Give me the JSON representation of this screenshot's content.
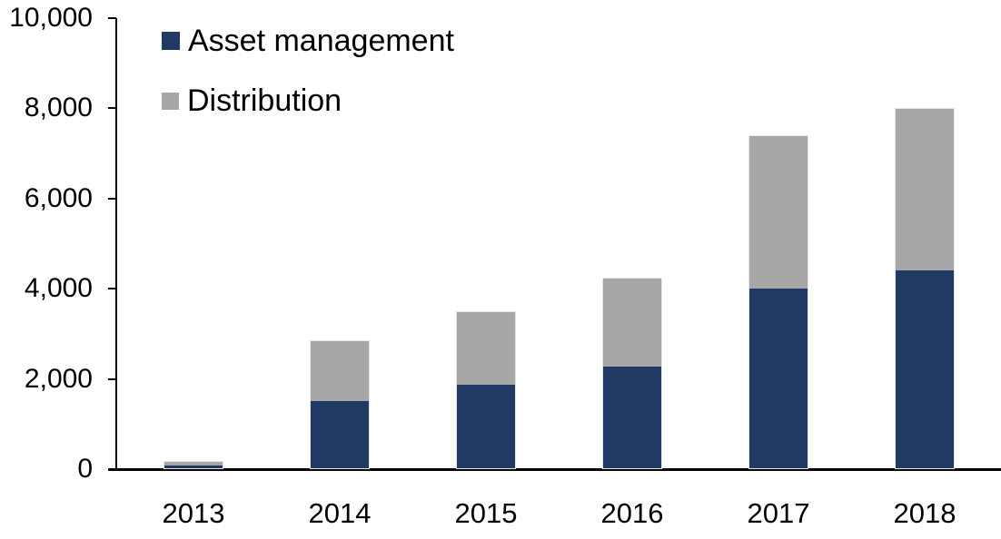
{
  "chart_data": {
    "type": "bar",
    "stacked": true,
    "title": "",
    "xlabel": "",
    "ylabel": "",
    "categories": [
      "2013",
      "2014",
      "2015",
      "2016",
      "2017",
      "2018"
    ],
    "series": [
      {
        "name": "Asset management",
        "color": "#213a63",
        "values": [
          90,
          1500,
          1870,
          2280,
          4000,
          4400
        ]
      },
      {
        "name": "Distribution",
        "color": "#a7a7a7",
        "values": [
          90,
          1350,
          1630,
          1970,
          3400,
          3600
        ]
      }
    ],
    "totals": [
      180,
      2850,
      3500,
      4250,
      7400,
      8000
    ],
    "ylim": [
      0,
      10000
    ],
    "ytick_step": 2000,
    "ytick_labels": [
      "0",
      "2,000",
      "4,000",
      "6,000",
      "8,000",
      "10,000"
    ],
    "legend_position": "top-left",
    "grid": false,
    "axis_color": "#000000",
    "text_color": "#000000",
    "background_color": "#ffffff"
  }
}
